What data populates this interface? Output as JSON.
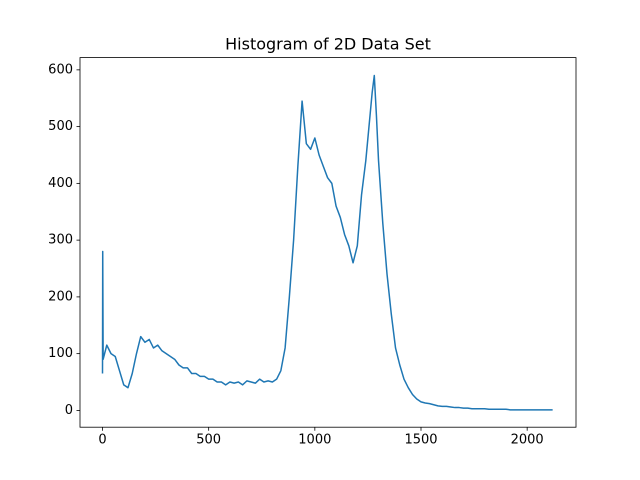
{
  "chart_data": {
    "type": "line",
    "title": "Histogram of 2D Data Set",
    "x": [
      0,
      1,
      3,
      20,
      40,
      60,
      80,
      100,
      120,
      140,
      160,
      180,
      200,
      220,
      240,
      260,
      280,
      300,
      320,
      340,
      360,
      380,
      400,
      420,
      440,
      460,
      480,
      500,
      520,
      540,
      560,
      580,
      600,
      620,
      640,
      660,
      680,
      700,
      720,
      740,
      760,
      780,
      800,
      820,
      840,
      860,
      880,
      900,
      920,
      940,
      960,
      980,
      1000,
      1020,
      1040,
      1060,
      1080,
      1100,
      1120,
      1140,
      1160,
      1180,
      1200,
      1220,
      1240,
      1260,
      1270,
      1280,
      1290,
      1300,
      1320,
      1340,
      1360,
      1380,
      1400,
      1420,
      1440,
      1460,
      1480,
      1500,
      1520,
      1540,
      1560,
      1580,
      1600,
      1620,
      1640,
      1660,
      1680,
      1700,
      1720,
      1740,
      1760,
      1780,
      1800,
      1820,
      1840,
      1860,
      1880,
      1900,
      1920,
      1940,
      1960,
      1980,
      2000,
      2020,
      2040,
      2060,
      2080,
      2100,
      2120
    ],
    "values": [
      65,
      280,
      90,
      115,
      100,
      95,
      70,
      45,
      40,
      65,
      100,
      130,
      120,
      125,
      110,
      115,
      105,
      100,
      95,
      90,
      80,
      75,
      75,
      65,
      65,
      60,
      60,
      55,
      55,
      50,
      50,
      45,
      50,
      48,
      50,
      45,
      52,
      50,
      48,
      55,
      50,
      52,
      50,
      55,
      70,
      110,
      200,
      300,
      430,
      545,
      470,
      460,
      480,
      450,
      430,
      410,
      400,
      360,
      340,
      310,
      290,
      260,
      290,
      380,
      440,
      520,
      560,
      590,
      520,
      440,
      330,
      240,
      170,
      110,
      80,
      55,
      40,
      28,
      20,
      15,
      13,
      12,
      10,
      8,
      7,
      7,
      6,
      5,
      5,
      4,
      4,
      3,
      3,
      3,
      3,
      2,
      2,
      2,
      2,
      2,
      1,
      1,
      1,
      1,
      1,
      1,
      1,
      1,
      1,
      1,
      1
    ],
    "color": "#1f77b4",
    "xlim": [
      -106,
      2230
    ],
    "xticks": [
      0,
      500,
      1000,
      1500,
      2000
    ],
    "ylim": [
      -29.6,
      621.6
    ],
    "yticks": [
      0,
      100,
      200,
      300,
      400,
      500,
      600
    ],
    "grid": false
  }
}
